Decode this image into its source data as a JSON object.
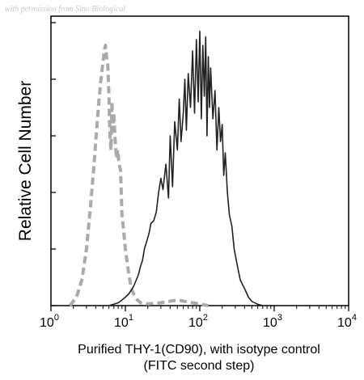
{
  "watermark": "with permission from Sino Biological",
  "chart_data": {
    "type": "line",
    "title": "",
    "xlabel_lines": [
      "Purified THY-1(CD90), with isotype control",
      "(FITC second step)"
    ],
    "ylabel": "Relative Cell Number",
    "x_scale": "log",
    "xlim": [
      1,
      10000
    ],
    "ylim": [
      0,
      100
    ],
    "x_ticks": [
      {
        "base": "10",
        "exp": "0"
      },
      {
        "base": "10",
        "exp": "1"
      },
      {
        "base": "10",
        "exp": "2"
      },
      {
        "base": "10",
        "exp": "3"
      },
      {
        "base": "10",
        "exp": "4"
      }
    ],
    "grid": false,
    "legend": "none",
    "series": [
      {
        "color": "#aaaaaa",
        "style": "dashed",
        "x": [
          1.8,
          2.2,
          2.6,
          3.0,
          3.4,
          3.8,
          4.1,
          4.4,
          4.7,
          5.0,
          5.2,
          5.4,
          5.6,
          5.8,
          6.0,
          6.2,
          6.4,
          6.6,
          6.8,
          7.0,
          7.3,
          7.6,
          7.9,
          8.2,
          8.6,
          9.0,
          9.5,
          10.0,
          10.5,
          11.0,
          12.0,
          13.0,
          14.5,
          16.0,
          20.0,
          30.0,
          50.0,
          80.0,
          130.0
        ],
        "y": [
          0,
          3,
          9,
          20,
          35,
          50,
          62,
          72,
          80,
          86,
          90,
          92,
          88,
          85,
          75,
          60,
          55,
          72,
          62,
          68,
          58,
          52,
          55,
          50,
          48,
          32,
          26,
          20,
          16,
          12,
          6,
          4,
          2,
          1,
          0.6,
          1,
          2,
          1,
          0
        ]
      },
      {
        "color": "#222222",
        "style": "solid",
        "x": [
          6.0,
          7.0,
          8.0,
          9.0,
          10.0,
          11.0,
          12.0,
          13.0,
          14.0,
          15.0,
          16.0,
          17.0,
          18.0,
          19.0,
          20.0,
          21.0,
          22.0,
          24.0,
          26.0,
          28.0,
          30.0,
          32.0,
          35.0,
          38.0,
          40.0,
          43.0,
          46.0,
          50.0,
          53.0,
          56.0,
          60.0,
          63.0,
          66.0,
          70.0,
          75.0,
          80.0,
          85.0,
          90.0,
          95.0,
          100.0,
          105.0,
          110.0,
          115.0,
          120.0,
          125.0,
          130.0,
          135.0,
          140.0,
          150.0,
          160.0,
          170.0,
          180.0,
          190.0,
          200.0,
          210.0,
          220.0,
          235.0,
          250.0,
          270.0,
          290.0,
          320.0,
          350.0,
          400.0,
          450.0,
          500.0,
          600.0,
          700.0
        ],
        "y": [
          0,
          0.5,
          1,
          2,
          3,
          4,
          5.5,
          7,
          9,
          11,
          14,
          16,
          20,
          22,
          24,
          26,
          29,
          30,
          33,
          40,
          45,
          41,
          50,
          38,
          60,
          42,
          65,
          55,
          73,
          58,
          68,
          80,
          62,
          82,
          70,
          90,
          68,
          94,
          72,
          97,
          66,
          92,
          74,
          95,
          60,
          88,
          70,
          84,
          66,
          76,
          55,
          70,
          58,
          64,
          46,
          54,
          40,
          32,
          28,
          20,
          14,
          9,
          6,
          3,
          1.5,
          0.5,
          0
        ]
      }
    ]
  }
}
